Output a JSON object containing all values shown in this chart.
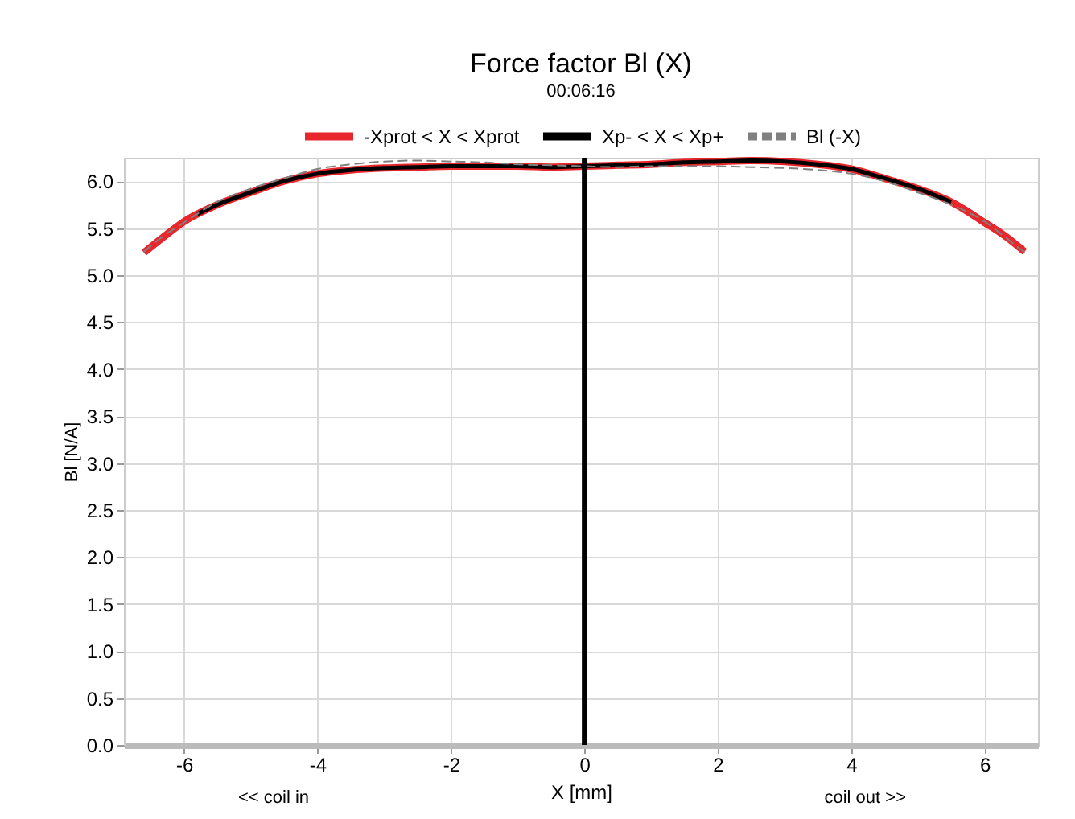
{
  "chart_data": {
    "type": "line",
    "title": "Force factor Bl (X)",
    "subtitle": "00:06:16",
    "xlabel": "X [mm]",
    "ylabel": "Bl [N/A]",
    "annotations": [
      "<< coil in",
      "coil out >>"
    ],
    "xlim": [
      -6.9,
      6.8
    ],
    "xticks": [
      -6,
      -4,
      -2,
      0,
      2,
      4,
      6
    ],
    "ylim": [
      0,
      6.25
    ],
    "yticks": [
      {
        "value": 0,
        "label": "0.0"
      },
      {
        "value": 0.5,
        "label": "0.5"
      },
      {
        "value": 1,
        "label": "1.0"
      },
      {
        "value": 1.5,
        "label": "1.5"
      },
      {
        "value": 2,
        "label": "2.0"
      },
      {
        "value": 2.5,
        "label": "2.5"
      },
      {
        "value": 3,
        "label": "3.0"
      },
      {
        "value": 3.5,
        "label": "3.5"
      },
      {
        "value": 4,
        "label": "4.0"
      },
      {
        "value": 4.5,
        "label": "4.5"
      },
      {
        "value": 5,
        "label": "5.0"
      },
      {
        "value": 5.5,
        "label": "5.5"
      },
      {
        "value": 6,
        "label": "6.0"
      }
    ],
    "grid": true,
    "legend": "top",
    "marker": "none",
    "ref_lines": [
      {
        "axis": "x",
        "value": 0,
        "color": "#000000"
      }
    ],
    "series": [
      {
        "name": "-Xprot < X < Xprot",
        "color": "#e8262b",
        "line_style": "solid",
        "x": [
          -6.6,
          -6.3,
          -6,
          -5.5,
          -5,
          -4.5,
          -4,
          -3.5,
          -3,
          -2.5,
          -2,
          -1.5,
          -1,
          -0.5,
          0,
          0.5,
          1,
          1.5,
          2,
          2.5,
          3,
          3.5,
          4,
          4.5,
          5,
          5.5,
          6,
          6.3,
          6.6
        ],
        "values": [
          5.24,
          5.41,
          5.57,
          5.75,
          5.88,
          6.0,
          6.08,
          6.12,
          6.14,
          6.15,
          6.16,
          6.16,
          6.16,
          6.15,
          6.16,
          6.17,
          6.18,
          6.2,
          6.21,
          6.22,
          6.21,
          6.18,
          6.13,
          6.03,
          5.92,
          5.78,
          5.56,
          5.42,
          5.25
        ]
      },
      {
        "name": "Xp- < X < Xp+",
        "color": "#000000",
        "line_style": "solid",
        "x": [
          -5.8,
          -5.5,
          -5,
          -4.5,
          -4,
          -3.5,
          -3,
          -2.5,
          -2,
          -1.5,
          -1,
          -0.5,
          0,
          0.5,
          1,
          1.5,
          2,
          2.5,
          3,
          3.5,
          4,
          4.5,
          5,
          5.5
        ],
        "values": [
          5.65,
          5.75,
          5.88,
          6.0,
          6.08,
          6.12,
          6.14,
          6.15,
          6.16,
          6.16,
          6.16,
          6.15,
          6.16,
          6.17,
          6.18,
          6.2,
          6.21,
          6.22,
          6.21,
          6.18,
          6.13,
          6.03,
          5.92,
          5.78
        ]
      },
      {
        "name": "Bl (-X)",
        "color": "#808080",
        "line_style": "dashed",
        "x": [
          -6.6,
          -6.3,
          -6,
          -5.5,
          -5,
          -4.5,
          -4,
          -3.5,
          -3,
          -2.5,
          -2,
          -1.5,
          -1,
          -0.5,
          0,
          0.5,
          1,
          1.5,
          2,
          2.5,
          3,
          3.5,
          4,
          4.5,
          5,
          5.5,
          6,
          6.3,
          6.6
        ],
        "values": [
          5.25,
          5.42,
          5.56,
          5.78,
          5.92,
          6.03,
          6.13,
          6.18,
          6.21,
          6.22,
          6.21,
          6.2,
          6.18,
          6.17,
          6.16,
          6.15,
          6.16,
          6.16,
          6.16,
          6.15,
          6.14,
          6.12,
          6.08,
          6.0,
          5.88,
          5.75,
          5.57,
          5.41,
          5.24
        ]
      }
    ]
  }
}
